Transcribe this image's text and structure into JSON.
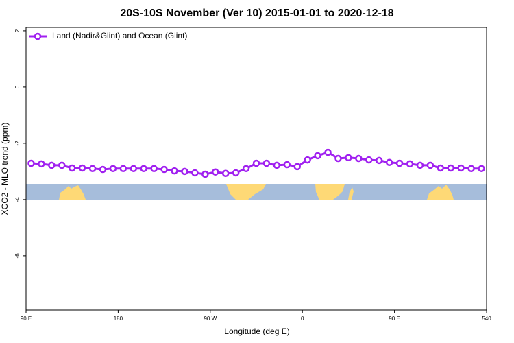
{
  "chart_data": {
    "type": "line",
    "title": "20S-10S November (Ver 10)   2015-01-01 to 2020-12-18",
    "xlabel": "Longitude (deg E)",
    "ylabel": "XCO2 - MLO trend (ppm)",
    "x": [
      95,
      105,
      115,
      125,
      135,
      145,
      155,
      165,
      175,
      185,
      195,
      205,
      215,
      225,
      235,
      245,
      255,
      265,
      275,
      285,
      295,
      305,
      315,
      325,
      335,
      345,
      355,
      365,
      375,
      385,
      395,
      405,
      415,
      425,
      435,
      445,
      455,
      465,
      475,
      485,
      495,
      505,
      515,
      525,
      535
    ],
    "series": [
      {
        "name": "Land (Nadir&Glint) and Ocean (Glint)",
        "color": "#a020f0",
        "values": [
          -2.71,
          -2.73,
          -2.78,
          -2.78,
          -2.88,
          -2.88,
          -2.9,
          -2.93,
          -2.9,
          -2.9,
          -2.9,
          -2.9,
          -2.9,
          -2.93,
          -2.98,
          -3.0,
          -3.05,
          -3.1,
          -3.02,
          -3.07,
          -3.05,
          -2.9,
          -2.71,
          -2.71,
          -2.78,
          -2.76,
          -2.83,
          -2.59,
          -2.44,
          -2.32,
          -2.54,
          -2.51,
          -2.54,
          -2.59,
          -2.61,
          -2.68,
          -2.71,
          -2.73,
          -2.78,
          -2.78,
          -2.88,
          -2.88,
          -2.88,
          -2.9,
          -2.9
        ]
      }
    ],
    "xlim": [
      90,
      540
    ],
    "xticks": [
      {
        "value": 90,
        "label": "90 E"
      },
      180,
      {
        "value": 270,
        "label": "90 W"
      },
      {
        "value": 360,
        "label": "0"
      },
      {
        "value": 450,
        "label": "90 E"
      },
      540
    ],
    "ylim": [
      -7.93,
      2.12
    ],
    "yticks": [
      2,
      0,
      -2,
      -4,
      -6
    ],
    "legend": "top-left"
  }
}
